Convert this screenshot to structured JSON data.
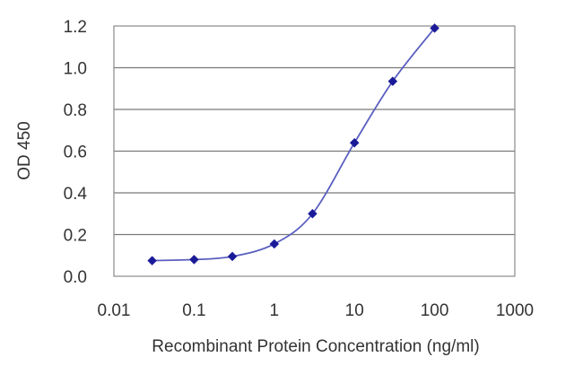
{
  "chart_data": {
    "type": "line",
    "title": "",
    "xlabel": "Recombinant Protein Concentration (ng/ml)",
    "ylabel": "OD 450",
    "xscale": "log",
    "xlim": [
      0.01,
      1000
    ],
    "ylim": [
      0,
      1.2
    ],
    "x_ticks": [
      "0.01",
      "0.1",
      "1",
      "10",
      "100",
      "1000"
    ],
    "y_ticks": [
      "0.0",
      "0.2",
      "0.4",
      "0.6",
      "0.8",
      "1.0",
      "1.2"
    ],
    "grid": "horizontal",
    "legend": "none",
    "line_color": "#5a5fc0",
    "marker_color": "#1a1a99",
    "marker": "diamond",
    "series": [
      {
        "x": [
          0.03,
          0.1,
          0.3,
          1,
          3,
          10,
          30,
          100
        ],
        "y": [
          0.075,
          0.08,
          0.095,
          0.155,
          0.3,
          0.64,
          0.935,
          1.19
        ]
      }
    ]
  }
}
